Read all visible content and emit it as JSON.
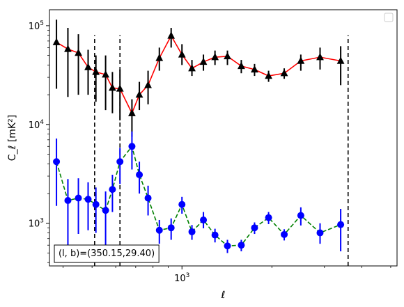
{
  "chart_data": {
    "type": "scatter",
    "xscale": "log",
    "yscale": "log",
    "xlim": [
      360,
      5250
    ],
    "ylim": [
      370,
      145000
    ],
    "xlabel": "ℓ",
    "ylabel": "C_ℓ [mK²]",
    "xtick_labels": [
      {
        "value": 1000,
        "base": "10",
        "exp": "3"
      }
    ],
    "ytick_labels": [
      {
        "value": 1000,
        "base": "10",
        "exp": "3"
      },
      {
        "value": 10000,
        "base": "10",
        "exp": "4"
      },
      {
        "value": 100000,
        "base": "10",
        "exp": "5"
      }
    ],
    "annotation": "(l, b)=(350.15,29.40)",
    "legend": "top-right, empty",
    "vlines": [
      {
        "x": 510,
        "ymin": 370,
        "ymax": 80000
      },
      {
        "x": 620,
        "ymin": 370,
        "ymax": 80000
      },
      {
        "x": 3600,
        "ymin": 370,
        "ymax": 80000
      }
    ],
    "series": [
      {
        "marker": "triangle",
        "color": "#000000",
        "line_color": "#ff0000",
        "line_style": "solid",
        "points": [
          {
            "x": 380,
            "y": 68000,
            "lo": 23000,
            "hi": 115000
          },
          {
            "x": 415,
            "y": 58000,
            "lo": 19000,
            "hi": 95000
          },
          {
            "x": 450,
            "y": 53000,
            "lo": 20000,
            "hi": 82000
          },
          {
            "x": 485,
            "y": 38000,
            "lo": 20000,
            "hi": 57000
          },
          {
            "x": 515,
            "y": 34000,
            "lo": 17000,
            "hi": 50000
          },
          {
            "x": 555,
            "y": 32000,
            "lo": 14000,
            "hi": 50000
          },
          {
            "x": 585,
            "y": 23500,
            "lo": 13000,
            "hi": 34000
          },
          {
            "x": 620,
            "y": 23000,
            "lo": 11000,
            "hi": 36000
          },
          {
            "x": 680,
            "y": 13000,
            "lo": 7500,
            "hi": 18000
          },
          {
            "x": 720,
            "y": 20000,
            "lo": 14000,
            "hi": 27000
          },
          {
            "x": 770,
            "y": 25000,
            "lo": 16000,
            "hi": 35000
          },
          {
            "x": 840,
            "y": 47000,
            "lo": 35000,
            "hi": 60000
          },
          {
            "x": 920,
            "y": 79000,
            "lo": 60000,
            "hi": 95000
          },
          {
            "x": 1000,
            "y": 51000,
            "lo": 40000,
            "hi": 65000
          },
          {
            "x": 1080,
            "y": 37000,
            "lo": 31000,
            "hi": 45000
          },
          {
            "x": 1180,
            "y": 43000,
            "lo": 35000,
            "hi": 51000
          },
          {
            "x": 1290,
            "y": 48000,
            "lo": 40000,
            "hi": 56000
          },
          {
            "x": 1420,
            "y": 49000,
            "lo": 40000,
            "hi": 56000
          },
          {
            "x": 1580,
            "y": 39000,
            "lo": 33000,
            "hi": 45000
          },
          {
            "x": 1750,
            "y": 36000,
            "lo": 31000,
            "hi": 41000
          },
          {
            "x": 1950,
            "y": 31000,
            "lo": 27000,
            "hi": 35000
          },
          {
            "x": 2200,
            "y": 33000,
            "lo": 29000,
            "hi": 37000
          },
          {
            "x": 2500,
            "y": 44000,
            "lo": 35000,
            "hi": 51000
          },
          {
            "x": 2900,
            "y": 48000,
            "lo": 36000,
            "hi": 60000
          },
          {
            "x": 3400,
            "y": 44000,
            "lo": 25000,
            "hi": 62000
          }
        ]
      },
      {
        "marker": "circle",
        "color": "#0000ff",
        "line_color": "#008000",
        "line_style": "dashed",
        "points": [
          {
            "x": 380,
            "y": 4200,
            "lo": 1500,
            "hi": 7200
          },
          {
            "x": 415,
            "y": 1700,
            "lo": 600,
            "hi": 2800
          },
          {
            "x": 450,
            "y": 1800,
            "lo": 780,
            "hi": 2850
          },
          {
            "x": 485,
            "y": 1750,
            "lo": 850,
            "hi": 2600
          },
          {
            "x": 515,
            "y": 1550,
            "lo": 800,
            "hi": 2300
          },
          {
            "x": 555,
            "y": 1350,
            "lo": 600,
            "hi": 2100
          },
          {
            "x": 585,
            "y": 2200,
            "lo": 1300,
            "hi": 3100
          },
          {
            "x": 620,
            "y": 4200,
            "lo": 2500,
            "hi": 5800
          },
          {
            "x": 680,
            "y": 6000,
            "lo": 3500,
            "hi": 8500
          },
          {
            "x": 720,
            "y": 3100,
            "lo": 2000,
            "hi": 4200
          },
          {
            "x": 770,
            "y": 1800,
            "lo": 1200,
            "hi": 2400
          },
          {
            "x": 840,
            "y": 850,
            "lo": 620,
            "hi": 1080
          },
          {
            "x": 920,
            "y": 900,
            "lo": 680,
            "hi": 1120
          },
          {
            "x": 1000,
            "y": 1550,
            "lo": 1250,
            "hi": 1850
          },
          {
            "x": 1080,
            "y": 820,
            "lo": 680,
            "hi": 960
          },
          {
            "x": 1180,
            "y": 1080,
            "lo": 890,
            "hi": 1300
          },
          {
            "x": 1290,
            "y": 760,
            "lo": 640,
            "hi": 880
          },
          {
            "x": 1420,
            "y": 590,
            "lo": 500,
            "hi": 680
          },
          {
            "x": 1580,
            "y": 600,
            "lo": 520,
            "hi": 680
          },
          {
            "x": 1750,
            "y": 900,
            "lo": 780,
            "hi": 1020
          },
          {
            "x": 1950,
            "y": 1140,
            "lo": 980,
            "hi": 1300
          },
          {
            "x": 2200,
            "y": 770,
            "lo": 670,
            "hi": 870
          },
          {
            "x": 2500,
            "y": 1200,
            "lo": 950,
            "hi": 1450
          },
          {
            "x": 2900,
            "y": 800,
            "lo": 620,
            "hi": 1000
          },
          {
            "x": 3400,
            "y": 970,
            "lo": 520,
            "hi": 1400
          }
        ]
      }
    ]
  }
}
